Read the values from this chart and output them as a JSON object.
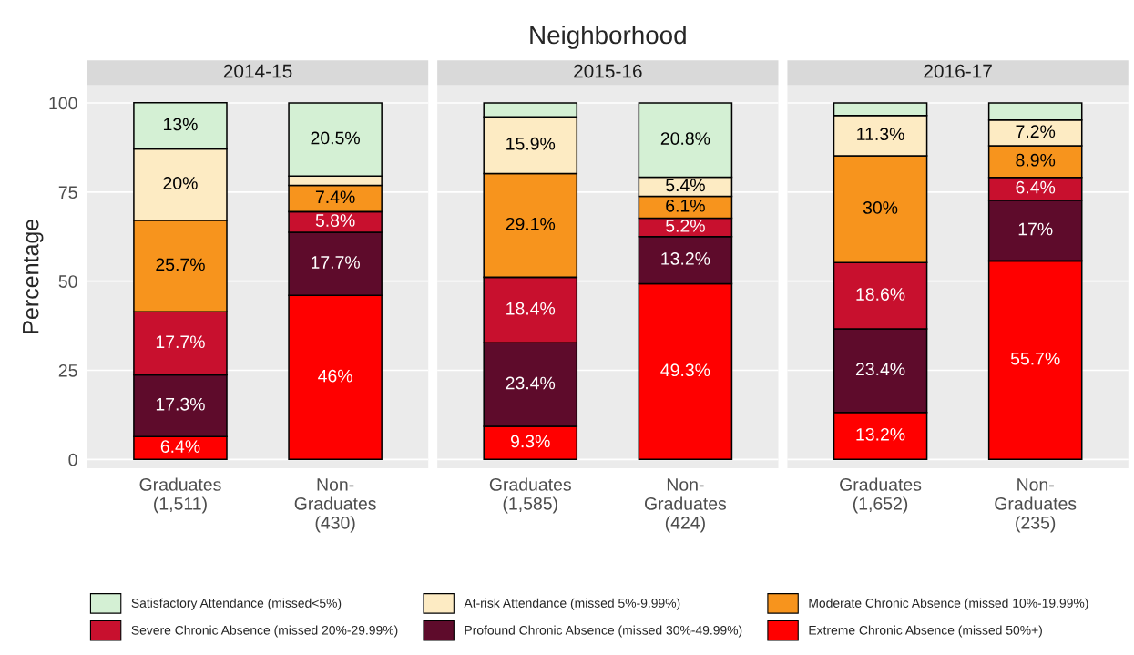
{
  "chart_data": [
    {
      "type": "bar",
      "subtitle": "2014-15",
      "ylabel": "Percentage",
      "stacked": true,
      "categories": [
        "Graduates\n(1,511)",
        "Non-\nGraduates\n(430)"
      ],
      "ylim": [
        -2.5,
        105
      ],
      "yticks": [
        0,
        25,
        50,
        75,
        100
      ],
      "grid": "y",
      "legend": "bottom",
      "series": [
        {
          "name": "Extreme Chronic Absence (missed 50%+)",
          "color": "#ff0000",
          "values": [
            6.4,
            46
          ],
          "value_labels": [
            "6.4%",
            "46%"
          ]
        },
        {
          "name": "Profound Chronic Absence (missed 30%-49.99%)",
          "color": "#5e0b2b",
          "values": [
            17.3,
            17.7
          ],
          "value_labels": [
            "17.3%",
            "17.7%"
          ]
        },
        {
          "name": "Severe Chronic Absence (missed 20%-29.99%)",
          "color": "#c8102e",
          "values": [
            17.7,
            5.8
          ],
          "value_labels": [
            "17.7%",
            "5.8%"
          ]
        },
        {
          "name": "Moderate Chronic Absence (missed 10%-19.99%)",
          "color": "#f7941d",
          "values": [
            25.7,
            7.4
          ],
          "value_labels": [
            "25.7%",
            "7.4%"
          ]
        },
        {
          "name": "At-risk Attendance (missed 5%-9.99%)",
          "color": "#fdebc3",
          "values": [
            20,
            2.6
          ],
          "value_labels": [
            "20%",
            null
          ]
        },
        {
          "name": "Satisfactory Attendance (missed<5%)",
          "color": "#d4f0d4",
          "values": [
            13,
            20.5
          ],
          "value_labels": [
            "13%",
            "20.5%"
          ]
        }
      ]
    },
    {
      "type": "bar",
      "title": "Neighborhood",
      "subtitle": "2015-16",
      "stacked": true,
      "categories": [
        "Graduates\n(1,585)",
        "Non-\nGraduates\n(424)"
      ],
      "ylim": [
        -2.5,
        105
      ],
      "yticks": [
        0,
        25,
        50,
        75,
        100
      ],
      "grid": "y",
      "tick_labels": "x",
      "series": [
        {
          "color": "#ff0000",
          "values": [
            9.3,
            49.3
          ],
          "value_labels": [
            "9.3%",
            "49.3%"
          ]
        },
        {
          "color": "#5e0b2b",
          "values": [
            23.4,
            13.2
          ],
          "value_labels": [
            "23.4%",
            "13.2%"
          ]
        },
        {
          "color": "#c8102e",
          "values": [
            18.4,
            5.2
          ],
          "value_labels": [
            "18.4%",
            "5.2%"
          ]
        },
        {
          "color": "#f7941d",
          "values": [
            29.1,
            6.1
          ],
          "value_labels": [
            "29.1%",
            "6.1%"
          ]
        },
        {
          "color": "#fdebc3",
          "values": [
            15.9,
            5.4
          ],
          "value_labels": [
            "15.9%",
            "5.4%"
          ]
        },
        {
          "color": "#d4f0d4",
          "values": [
            3.9,
            20.8
          ],
          "value_labels": [
            null,
            "20.8%"
          ]
        }
      ]
    },
    {
      "type": "bar",
      "subtitle": "2016-17",
      "stacked": true,
      "categories": [
        "Graduates\n(1,652)",
        "Non-\nGraduates\n(235)"
      ],
      "ylim": [
        -2.5,
        105
      ],
      "yticks": [
        0,
        25,
        50,
        75,
        100
      ],
      "grid": "y",
      "tick_labels": "x",
      "series": [
        {
          "color": "#ff0000",
          "values": [
            13.2,
            55.7
          ],
          "value_labels": [
            "13.2%",
            "55.7%"
          ]
        },
        {
          "color": "#5e0b2b",
          "values": [
            23.4,
            17
          ],
          "value_labels": [
            "23.4%",
            "17%"
          ]
        },
        {
          "color": "#c8102e",
          "values": [
            18.6,
            6.4
          ],
          "value_labels": [
            "18.6%",
            "6.4%"
          ]
        },
        {
          "color": "#f7941d",
          "values": [
            30,
            8.9
          ],
          "value_labels": [
            "30%",
            "8.9%"
          ]
        },
        {
          "color": "#fdebc3",
          "values": [
            11.3,
            7.2
          ],
          "value_labels": [
            "11.3%",
            "7.2%"
          ]
        },
        {
          "color": "#d4f0d4",
          "values": [
            3.5,
            4.8
          ],
          "value_labels": [
            null,
            null
          ]
        }
      ]
    }
  ]
}
